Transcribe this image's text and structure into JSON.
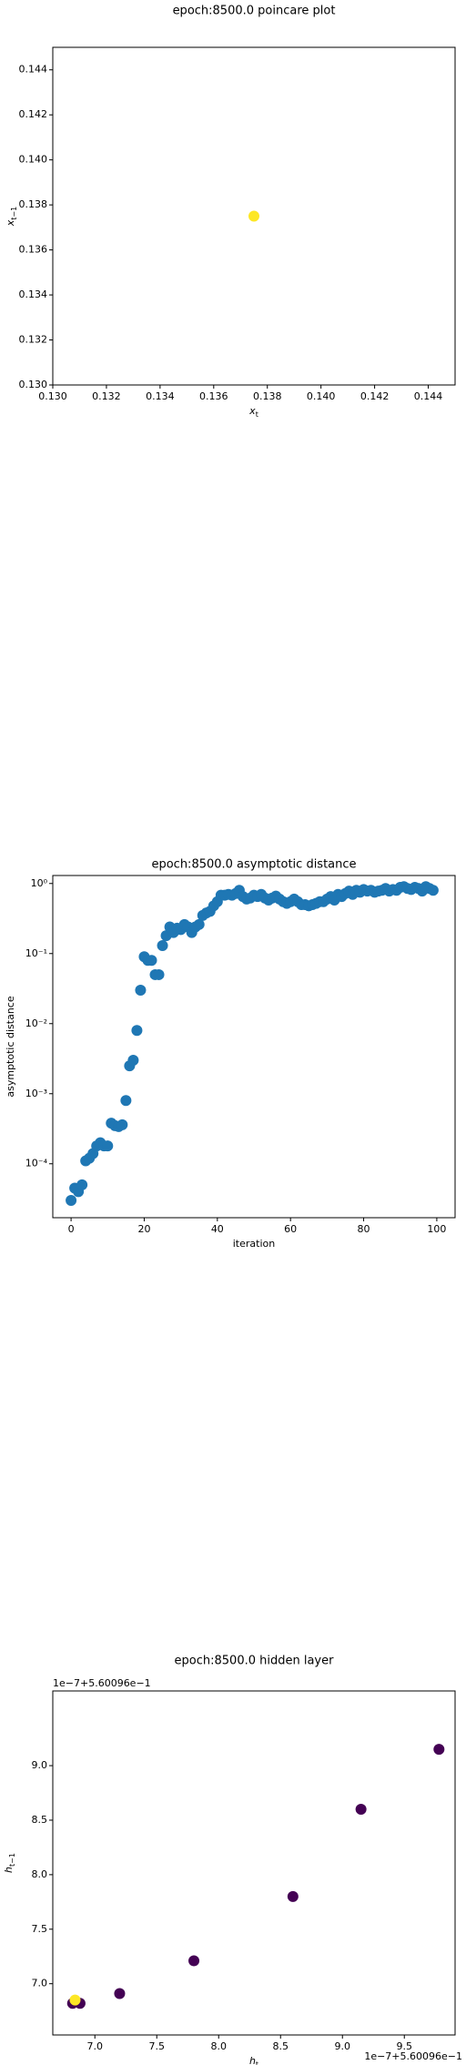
{
  "chart_data": [
    {
      "type": "scatter",
      "title": "epoch:8500.0 poincare plot",
      "xlabel": {
        "text": "x",
        "sub": "t"
      },
      "ylabel": {
        "text": "x",
        "sub": "t−1"
      },
      "xlim": [
        0.13,
        0.145
      ],
      "ylim": [
        0.13,
        0.145
      ],
      "xticks": [
        {
          "value": 0.13,
          "label": "0.130"
        },
        {
          "value": 0.132,
          "label": "0.132"
        },
        {
          "value": 0.134,
          "label": "0.134"
        },
        {
          "value": 0.136,
          "label": "0.136"
        },
        {
          "value": 0.138,
          "label": "0.138"
        },
        {
          "value": 0.14,
          "label": "0.140"
        },
        {
          "value": 0.142,
          "label": "0.142"
        },
        {
          "value": 0.144,
          "label": "0.144"
        }
      ],
      "yticks": [
        {
          "value": 0.13,
          "label": "0.130"
        },
        {
          "value": 0.132,
          "label": "0.132"
        },
        {
          "value": 0.134,
          "label": "0.134"
        },
        {
          "value": 0.136,
          "label": "0.136"
        },
        {
          "value": 0.138,
          "label": "0.138"
        },
        {
          "value": 0.14,
          "label": "0.140"
        },
        {
          "value": 0.142,
          "label": "0.142"
        },
        {
          "value": 0.144,
          "label": "0.144"
        }
      ],
      "series": [
        {
          "x": [
            0.1375
          ],
          "values": [
            0.1375
          ],
          "color": "#fde725"
        }
      ]
    },
    {
      "type": "scatter",
      "title": "epoch:8500.0 asymptotic distance",
      "xlabel": "iteration",
      "ylabel": "asymptotic distance",
      "yscale": "log",
      "xlim": [
        -5,
        105
      ],
      "ylim": [
        1.7e-05,
        1.3
      ],
      "xticks": [
        0,
        20,
        40,
        60,
        80,
        100
      ],
      "yticks": [
        {
          "value": 0.0001,
          "label": "10⁻⁴"
        },
        {
          "value": 0.001,
          "label": "10⁻³"
        },
        {
          "value": 0.01,
          "label": "10⁻²"
        },
        {
          "value": 0.1,
          "label": "10⁻¹"
        },
        {
          "value": 1,
          "label": "10⁰"
        }
      ],
      "series": [
        {
          "color": "#1f77b4",
          "x": [
            0,
            1,
            2,
            3,
            4,
            5,
            6,
            7,
            8,
            9,
            10,
            11,
            12,
            13,
            14,
            15,
            16,
            17,
            18,
            19,
            20,
            21,
            22,
            23,
            24,
            25,
            26,
            27,
            28,
            29,
            30,
            31,
            32,
            33,
            34,
            35,
            36,
            37,
            38,
            39,
            40,
            41,
            42,
            43,
            44,
            45,
            46,
            47,
            48,
            49,
            50,
            51,
            52,
            53,
            54,
            55,
            56,
            57,
            58,
            59,
            60,
            61,
            62,
            63,
            64,
            65,
            66,
            67,
            68,
            69,
            70,
            71,
            72,
            73,
            74,
            75,
            76,
            77,
            78,
            79,
            80,
            81,
            82,
            83,
            84,
            85,
            86,
            87,
            88,
            89,
            90,
            91,
            92,
            93,
            94,
            95,
            96,
            97,
            98,
            99
          ],
          "values": [
            3e-05,
            4.5e-05,
            4e-05,
            5e-05,
            0.00011,
            0.00012,
            0.00014,
            0.00018,
            0.0002,
            0.00018,
            0.00018,
            0.00038,
            0.00035,
            0.00034,
            0.00036,
            0.0008,
            0.0025,
            0.003,
            0.008,
            0.03,
            0.09,
            0.08,
            0.08,
            0.05,
            0.05,
            0.13,
            0.18,
            0.24,
            0.2,
            0.23,
            0.22,
            0.26,
            0.24,
            0.2,
            0.24,
            0.26,
            0.35,
            0.38,
            0.4,
            0.48,
            0.55,
            0.68,
            0.68,
            0.7,
            0.68,
            0.72,
            0.8,
            0.65,
            0.6,
            0.62,
            0.68,
            0.65,
            0.7,
            0.62,
            0.58,
            0.62,
            0.66,
            0.6,
            0.55,
            0.52,
            0.55,
            0.6,
            0.55,
            0.5,
            0.5,
            0.48,
            0.5,
            0.52,
            0.55,
            0.55,
            0.6,
            0.65,
            0.58,
            0.7,
            0.65,
            0.72,
            0.78,
            0.7,
            0.8,
            0.75,
            0.82,
            0.78,
            0.8,
            0.75,
            0.78,
            0.8,
            0.85,
            0.78,
            0.82,
            0.8,
            0.88,
            0.9,
            0.85,
            0.82,
            0.88,
            0.85,
            0.78,
            0.9,
            0.85,
            0.8
          ]
        }
      ]
    },
    {
      "type": "scatter",
      "title": "epoch:8500.0 hidden layer",
      "xlabel": {
        "text": "h",
        "sub": "t"
      },
      "ylabel": {
        "text": "h",
        "sub": "t−1"
      },
      "x_offset": "1e−7+5.60096e−1",
      "y_offset": "1e−7+5.60096e−1",
      "xlim": [
        6.66,
        9.91
      ],
      "ylim": [
        6.53,
        9.685
      ],
      "xticks": [
        {
          "value": 7,
          "label": "7.0"
        },
        {
          "value": 7.5,
          "label": "7.5"
        },
        {
          "value": 8,
          "label": "8.0"
        },
        {
          "value": 8.5,
          "label": "8.5"
        },
        {
          "value": 9,
          "label": "9.0"
        },
        {
          "value": 9.5,
          "label": "9.5"
        }
      ],
      "yticks": [
        {
          "value": 7,
          "label": "7.0"
        },
        {
          "value": 7.5,
          "label": "7.5"
        },
        {
          "value": 8,
          "label": "8.0"
        },
        {
          "value": 8.5,
          "label": "8.5"
        },
        {
          "value": 9,
          "label": "9.0"
        }
      ],
      "series": [
        {
          "x": [
            9.78,
            9.15,
            8.6,
            7.8,
            7.2,
            6.88,
            6.82,
            6.84
          ],
          "values": [
            9.15,
            8.6,
            7.8,
            7.21,
            6.91,
            6.82,
            6.82,
            6.85
          ],
          "colors": [
            "#440154",
            "#440154",
            "#440154",
            "#440154",
            "#440154",
            "#440154",
            "#440154",
            "#fde725"
          ]
        }
      ]
    }
  ]
}
